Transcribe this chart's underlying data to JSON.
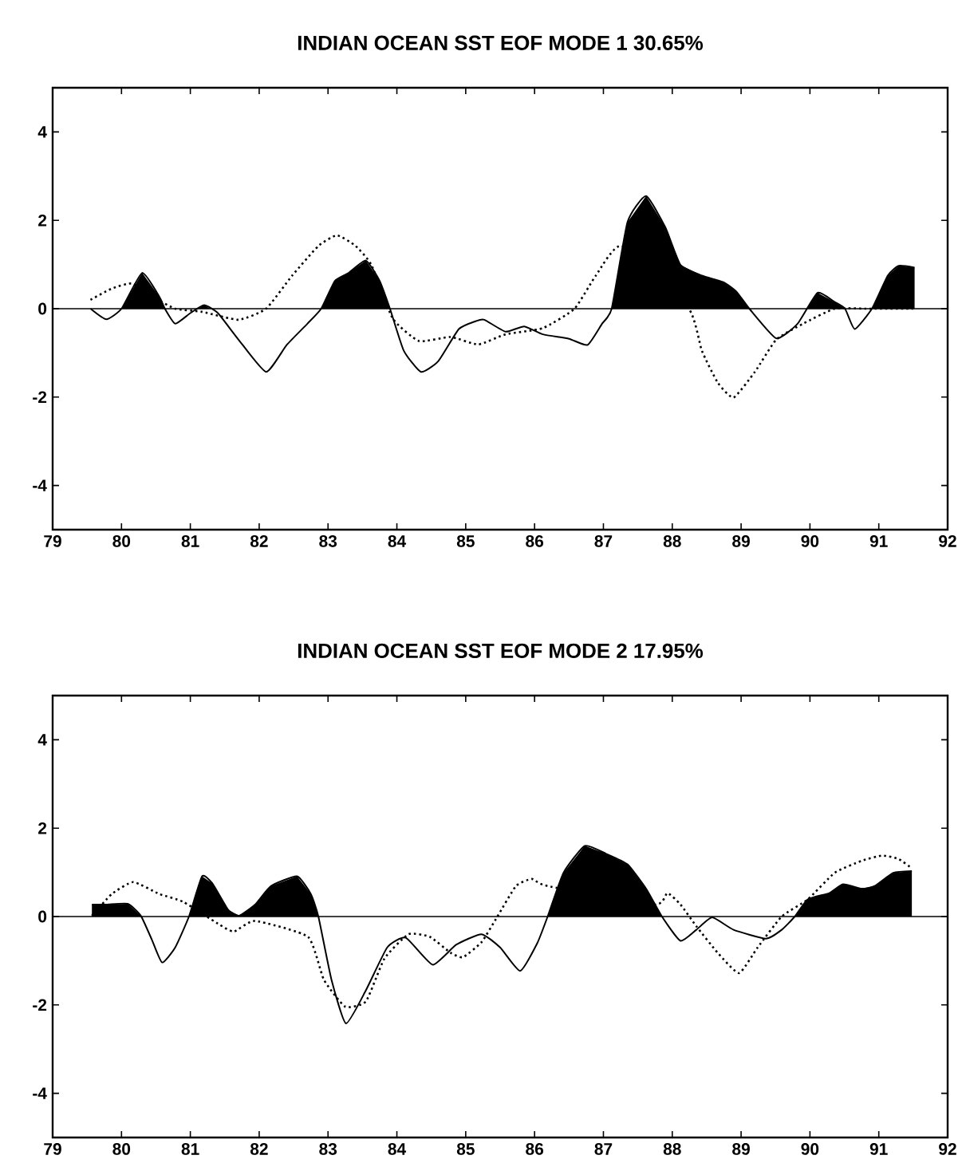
{
  "chart_data": [
    {
      "type": "line",
      "title": "INDIAN OCEAN SST EOF MODE 1 30.65%",
      "xlim": [
        79,
        92
      ],
      "xticks": [
        79,
        80,
        81,
        82,
        83,
        84,
        85,
        86,
        87,
        88,
        89,
        90,
        91,
        92
      ],
      "ylim": [
        -5,
        5
      ],
      "yticks": [
        -4,
        -2,
        0,
        2,
        4
      ],
      "grid": false,
      "ref_lines": [
        {
          "axis": "y",
          "value": 0
        }
      ],
      "series": [
        {
          "type": "area",
          "color": "#000000",
          "line_style": "solid",
          "x": [
            79.55,
            79.78,
            80.0,
            80.3,
            80.55,
            80.63,
            80.78,
            81.0,
            81.2,
            81.4,
            81.7,
            82.1,
            82.4,
            82.7,
            82.9,
            83.1,
            83.3,
            83.55,
            83.75,
            83.9,
            84.1,
            84.35,
            84.6,
            84.9,
            85.15,
            85.27,
            85.58,
            85.85,
            86.12,
            86.5,
            86.77,
            86.98,
            87.12,
            87.35,
            87.62,
            87.9,
            88.12,
            88.43,
            88.74,
            88.93,
            89.12,
            89.51,
            89.82,
            90.11,
            90.36,
            90.51,
            90.65,
            90.9,
            91.13,
            91.29,
            91.52
          ],
          "values": [
            0,
            -0.24,
            0,
            0.81,
            0.27,
            0,
            -0.34,
            -0.1,
            0.08,
            -0.1,
            -0.7,
            -1.43,
            -0.82,
            -0.34,
            0,
            0.63,
            0.81,
            1.09,
            0.63,
            0,
            -0.95,
            -1.43,
            -1.19,
            -0.46,
            -0.28,
            -0.25,
            -0.52,
            -0.4,
            -0.58,
            -0.68,
            -0.82,
            -0.34,
            0,
            1.96,
            2.55,
            1.84,
            0.99,
            0.75,
            0.6,
            0.39,
            0,
            -0.67,
            -0.34,
            0.36,
            0.15,
            0,
            -0.46,
            0,
            0.75,
            0.97,
            0.93
          ]
        },
        {
          "type": "line",
          "color": "#000000",
          "line_style": "dotted",
          "x": [
            79.55,
            79.85,
            80.15,
            80.45,
            80.78,
            81.17,
            81.7,
            82.1,
            82.48,
            82.86,
            83.13,
            83.4,
            83.63,
            83.94,
            84.32,
            84.78,
            85.18,
            85.58,
            86.12,
            86.58,
            86.89,
            87.27,
            88.24,
            88.43,
            88.66,
            88.89,
            89.2,
            89.51,
            89.9,
            90.36,
            90.8,
            91.5
          ],
          "values": [
            0.2,
            0.45,
            0.57,
            0.27,
            0,
            -0.07,
            -0.25,
            0,
            0.75,
            1.42,
            1.66,
            1.42,
            0.99,
            -0.22,
            -0.73,
            -0.64,
            -0.81,
            -0.58,
            -0.44,
            0,
            0.75,
            1.42,
            0,
            -0.95,
            -1.67,
            -2.01,
            -1.43,
            -0.7,
            -0.34,
            0,
            0,
            0
          ]
        }
      ]
    },
    {
      "type": "line",
      "title": "INDIAN OCEAN SST EOF MODE 2 17.95%",
      "xlim": [
        79,
        92
      ],
      "xticks": [
        79,
        80,
        81,
        82,
        83,
        84,
        85,
        86,
        87,
        88,
        89,
        90,
        91,
        92
      ],
      "ylim": [
        -5,
        5
      ],
      "yticks": [
        -4,
        -2,
        0,
        2,
        4
      ],
      "grid": false,
      "ref_lines": [
        {
          "axis": "y",
          "value": 0
        }
      ],
      "series": [
        {
          "type": "area",
          "color": "#000000",
          "line_style": "solid",
          "x": [
            79.57,
            79.78,
            80.09,
            80.28,
            80.44,
            80.59,
            80.78,
            80.98,
            81.17,
            81.32,
            81.55,
            81.71,
            81.94,
            82.17,
            82.55,
            82.75,
            82.86,
            83.05,
            83.26,
            83.55,
            83.86,
            84.13,
            84.52,
            84.86,
            85.23,
            85.5,
            85.79,
            86.04,
            86.19,
            86.42,
            86.73,
            87.04,
            87.35,
            87.62,
            87.85,
            88.12,
            88.35,
            88.58,
            88.89,
            89.36,
            89.59,
            89.78,
            89.97,
            90.28,
            90.48,
            90.75,
            90.94,
            91.21,
            91.48
          ],
          "values": [
            0.27,
            0.27,
            0.29,
            0.02,
            -0.52,
            -1.04,
            -0.7,
            0,
            0.91,
            0.75,
            0.15,
            0.02,
            0.27,
            0.69,
            0.91,
            0.51,
            0,
            -1.43,
            -2.42,
            -1.67,
            -0.7,
            -0.48,
            -1.09,
            -0.64,
            -0.4,
            -0.7,
            -1.23,
            -0.6,
            0,
            0.99,
            1.6,
            1.42,
            1.18,
            0.63,
            0,
            -0.55,
            -0.3,
            -0.02,
            -0.3,
            -0.5,
            -0.3,
            0,
            0.39,
            0.53,
            0.73,
            0.63,
            0.69,
            0.99,
            1.03
          ]
        },
        {
          "type": "line",
          "color": "#000000",
          "line_style": "dotted",
          "x": [
            79.57,
            79.86,
            80.17,
            80.55,
            80.9,
            81.4,
            81.63,
            81.94,
            82.71,
            82.94,
            83.25,
            83.55,
            83.82,
            84.17,
            84.48,
            84.78,
            84.96,
            85.23,
            85.46,
            85.73,
            85.96,
            86.19,
            87.74,
            87.93,
            88.12,
            88.35,
            88.66,
            88.97,
            89.24,
            89.59,
            89.97,
            90.36,
            90.75,
            91.05,
            91.29,
            91.48
          ],
          "values": [
            0.02,
            0.51,
            0.78,
            0.51,
            0.33,
            -0.16,
            -0.34,
            -0.1,
            -0.46,
            -1.43,
            -2.04,
            -1.92,
            -0.95,
            -0.4,
            -0.46,
            -0.82,
            -0.92,
            -0.58,
            0,
            0.69,
            0.85,
            0.69,
            0.27,
            0.53,
            0.27,
            -0.22,
            -0.82,
            -1.28,
            -0.7,
            0,
            0.39,
            0.99,
            1.26,
            1.38,
            1.3,
            1.09
          ]
        }
      ]
    }
  ]
}
